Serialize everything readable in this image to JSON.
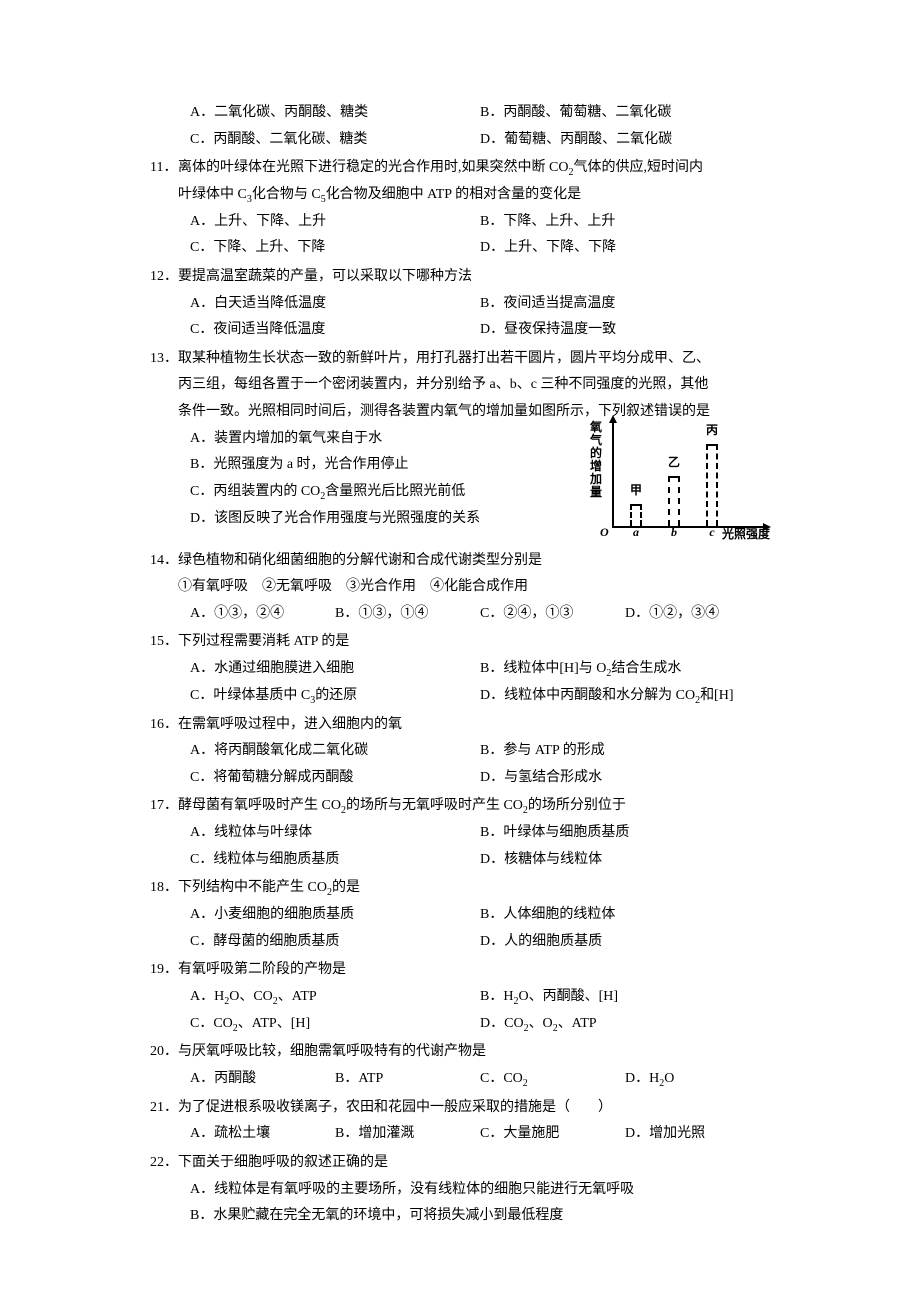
{
  "q10": {
    "optA": "A．二氧化碳、丙酮酸、糖类",
    "optB": "B．丙酮酸、葡萄糖、二氧化碳",
    "optC": "C．丙酮酸、二氧化碳、糖类",
    "optD": "D．葡萄糖、丙酮酸、二氧化碳"
  },
  "q11": {
    "num": "11．",
    "stem1": "离体的叶绿体在光照下进行稳定的光合作用时,如果突然中断 CO",
    "stem1b": "气体的供应,短时间内",
    "stem2a": "叶绿体中 C",
    "stem2b": "化合物与 C",
    "stem2c": "化合物及细胞中 ATP 的相对含量的变化是",
    "optA": "A．上升、下降、上升",
    "optB": "B．下降、上升、上升",
    "optC": "C．下降、上升、下降",
    "optD": "D．上升、下降、下降"
  },
  "q12": {
    "num": "12．",
    "stem": "要提高温室蔬菜的产量，可以采取以下哪种方法",
    "optA": "A．白天适当降低温度",
    "optB": "B．夜间适当提高温度",
    "optC": "C．夜间适当降低温度",
    "optD": "D．昼夜保持温度一致"
  },
  "q13": {
    "num": "13．",
    "stem1": "取某种植物生长状态一致的新鲜叶片，用打孔器打出若干圆片，圆片平均分成甲、乙、",
    "stem2": "丙三组，每组各置于一个密闭装置内，并分别给予 a、b、c 三种不同强度的光照，其他",
    "stem3": "条件一致。光照相同时间后，测得各装置内氧气的增加量如图所示，下列叙述错误的是",
    "optA": "A．装置内增加的氧气来自于水",
    "optB": "B．光照强度为 a 时，光合作用停止",
    "optC_a": "C．丙组装置内的 CO",
    "optC_b": "含量照光后比照光前低",
    "optD": "D．该图反映了光合作用强度与光照强度的关系",
    "chart": {
      "y_label": "氧气的增加量",
      "x_label": "光照强度",
      "origin": "O",
      "bars": {
        "a": {
          "x": "a",
          "top": "甲"
        },
        "b": {
          "x": "b",
          "top": "乙"
        },
        "c": {
          "x": "c",
          "top": "丙"
        }
      }
    }
  },
  "q14": {
    "num": "14．",
    "stem": "绿色植物和硝化细菌细胞的分解代谢和合成代谢类型分别是",
    "items": "①有氧呼吸　②无氧呼吸　③光合作用　④化能合成作用",
    "optA": "A．①③，②④",
    "optB": "B．①③，①④",
    "optC": "C．②④，①③",
    "optD": "D．①②，③④"
  },
  "q15": {
    "num": "15．",
    "stem": "下列过程需要消耗 ATP 的是",
    "optA": "A．水通过细胞膜进入细胞",
    "optB_a": "B．线粒体中[H]与 O",
    "optB_b": "结合生成水",
    "optC_a": "C．叶绿体基质中 C",
    "optC_b": "的还原",
    "optD_a": "D．线粒体中丙酮酸和水分解为 CO",
    "optD_b": "和[H]"
  },
  "q16": {
    "num": "16．",
    "stem": "在需氧呼吸过程中，进入细胞内的氧",
    "optA": "A．将丙酮酸氧化成二氧化碳",
    "optB": "B．参与 ATP 的形成",
    "optC": "C．将葡萄糖分解成丙酮酸",
    "optD": "D．与氢结合形成水"
  },
  "q17": {
    "num": "17．",
    "stem_a": "酵母菌有氧呼吸时产生 CO",
    "stem_b": "的场所与无氧呼吸时产生 CO",
    "stem_c": "的场所分别位于",
    "optA": "A．线粒体与叶绿体",
    "optB": "B．叶绿体与细胞质基质",
    "optC": "C．线粒体与细胞质基质",
    "optD": "D．核糖体与线粒体"
  },
  "q18": {
    "num": "18．",
    "stem_a": "下列结构中不能产生 CO",
    "stem_b": "的是",
    "optA": "A．小麦细胞的细胞质基质",
    "optB": "B．人体细胞的线粒体",
    "optC": "C．酵母菌的细胞质基质",
    "optD": "D．人的细胞质基质"
  },
  "q19": {
    "num": "19．",
    "stem": "有氧呼吸第二阶段的产物是",
    "optA_a": "A．H",
    "optA_b": "O、CO",
    "optA_c": "、ATP",
    "optB_a": "B．H",
    "optB_b": "O、丙酮酸、[H]",
    "optC_a": "C．CO",
    "optC_b": "、ATP、[H]",
    "optD_a": "D．CO",
    "optD_b": "、O",
    "optD_c": "、ATP"
  },
  "q20": {
    "num": "20．",
    "stem": "与厌氧呼吸比较，细胞需氧呼吸特有的代谢产物是",
    "optA": "A．丙酮酸",
    "optB": "B．ATP",
    "optC_a": "C．CO",
    "optD_a": "D．H",
    "optD_b": "O"
  },
  "q21": {
    "num": "21．",
    "stem": "为了促进根系吸收镁离子，农田和花园中一般应采取的措施是（　　）",
    "optA": "A．疏松土壤",
    "optB": "B．增加灌溉",
    "optC": "C．大量施肥",
    "optD": "D．增加光照"
  },
  "q22": {
    "num": "22．",
    "stem": "下面关于细胞呼吸的叙述正确的是",
    "optA": "A．线粒体是有氧呼吸的主要场所，没有线粒体的细胞只能进行无氧呼吸",
    "optB": "B．水果贮藏在完全无氧的环境中，可将损失减小到最低程度"
  },
  "subs": {
    "s2": "2",
    "s3": "3",
    "s5": "5"
  }
}
